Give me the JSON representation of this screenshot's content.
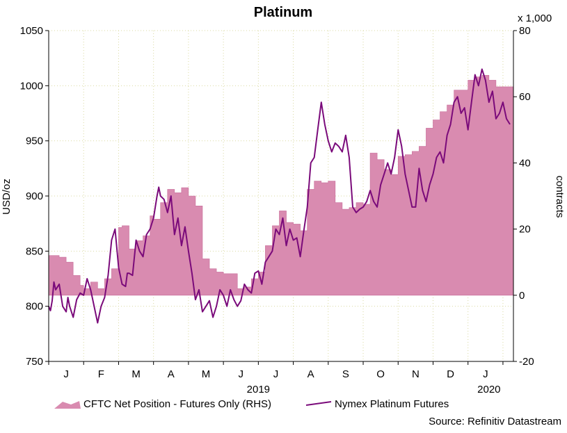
{
  "chart_data": {
    "type": "line",
    "title": "Platinum",
    "left_axis": {
      "label": "USD/oz",
      "range": [
        750,
        1050
      ],
      "ticks": [
        "750",
        "800",
        "850",
        "900",
        "950",
        "1000",
        "1050"
      ],
      "tick_values": [
        750,
        800,
        850,
        900,
        950,
        1000,
        1050
      ]
    },
    "right_axis": {
      "label": "contracts",
      "multiplier_label": "x 1,000",
      "range": [
        -20,
        80
      ],
      "ticks": [
        "-20",
        "0",
        "20",
        "40",
        "60",
        "80"
      ],
      "tick_values": [
        -20,
        0,
        20,
        40,
        60,
        80
      ]
    },
    "x_axis": {
      "range": [
        0,
        13.3
      ],
      "month_labels": [
        "J",
        "F",
        "M",
        "A",
        "M",
        "J",
        "J",
        "A",
        "S",
        "O",
        "N",
        "D",
        "J"
      ],
      "month_positions": [
        0.5,
        1.5,
        2.5,
        3.5,
        4.5,
        5.5,
        6.5,
        7.5,
        8.5,
        9.5,
        10.5,
        11.5,
        12.5
      ],
      "year_labels": [
        "2019",
        "2020"
      ],
      "year_positions": [
        6.0,
        12.6
      ]
    },
    "series": [
      {
        "name": "CFTC Net Position - Futures Only (RHS)",
        "type": "area-step",
        "axis": "right",
        "color": "#d98bb0",
        "x": [
          0,
          0.3,
          0.5,
          0.7,
          0.9,
          1.0,
          1.2,
          1.4,
          1.6,
          1.8,
          2.0,
          2.1,
          2.3,
          2.5,
          2.7,
          2.9,
          3.0,
          3.2,
          3.4,
          3.6,
          3.8,
          4.0,
          4.2,
          4.4,
          4.6,
          4.8,
          5.0,
          5.2,
          5.4,
          5.6,
          5.8,
          6.0,
          6.2,
          6.4,
          6.6,
          6.8,
          7.0,
          7.2,
          7.4,
          7.6,
          7.8,
          8.0,
          8.2,
          8.4,
          8.6,
          8.8,
          9.0,
          9.2,
          9.4,
          9.6,
          9.8,
          10.0,
          10.2,
          10.4,
          10.6,
          10.8,
          11.0,
          11.2,
          11.4,
          11.6,
          11.8,
          12.0,
          12.2,
          12.4,
          12.6,
          12.8,
          13.0,
          13.2
        ],
        "values": [
          12,
          11.5,
          10,
          6,
          3,
          2,
          4,
          2,
          5,
          8,
          20.5,
          21,
          14,
          16.5,
          18,
          24,
          23,
          28,
          32,
          31,
          32.5,
          30,
          27,
          11,
          8,
          7,
          6.5,
          6.5,
          2,
          2.5,
          5,
          7,
          15,
          21,
          25.5,
          22,
          21.5,
          19.5,
          32,
          34.5,
          34,
          34.5,
          28,
          26,
          26.5,
          28,
          27.5,
          43,
          41,
          38,
          36.5,
          42,
          42.5,
          43.5,
          45,
          50.5,
          53,
          55.5,
          57.5,
          62,
          62,
          65,
          66,
          66.5,
          65,
          63,
          63,
          63
        ]
      },
      {
        "name": "Nymex Platinum Futures",
        "type": "line",
        "axis": "left",
        "color": "#7a0a7a",
        "x": [
          0,
          0.05,
          0.1,
          0.15,
          0.2,
          0.3,
          0.4,
          0.5,
          0.55,
          0.6,
          0.7,
          0.8,
          0.9,
          1.0,
          1.1,
          1.2,
          1.3,
          1.4,
          1.5,
          1.6,
          1.7,
          1.8,
          1.9,
          2.0,
          2.1,
          2.2,
          2.25,
          2.3,
          2.4,
          2.5,
          2.6,
          2.7,
          2.8,
          2.9,
          3.0,
          3.1,
          3.15,
          3.2,
          3.3,
          3.4,
          3.5,
          3.6,
          3.7,
          3.8,
          3.9,
          4.0,
          4.1,
          4.2,
          4.3,
          4.4,
          4.5,
          4.6,
          4.7,
          4.8,
          4.9,
          5.0,
          5.1,
          5.2,
          5.3,
          5.4,
          5.5,
          5.6,
          5.7,
          5.8,
          5.9,
          6.0,
          6.1,
          6.2,
          6.3,
          6.4,
          6.5,
          6.6,
          6.7,
          6.8,
          6.9,
          7.0,
          7.1,
          7.2,
          7.3,
          7.4,
          7.5,
          7.6,
          7.7,
          7.8,
          7.9,
          8.0,
          8.05,
          8.1,
          8.2,
          8.3,
          8.4,
          8.5,
          8.6,
          8.7,
          8.8,
          8.9,
          9.0,
          9.1,
          9.2,
          9.3,
          9.4,
          9.5,
          9.6,
          9.7,
          9.8,
          9.9,
          10.0,
          10.1,
          10.2,
          10.3,
          10.4,
          10.5,
          10.6,
          10.7,
          10.8,
          10.9,
          11.0,
          11.1,
          11.2,
          11.3,
          11.4,
          11.5,
          11.6,
          11.7,
          11.8,
          11.9,
          12.0,
          12.1,
          12.2,
          12.3,
          12.4,
          12.5,
          12.6,
          12.7,
          12.8,
          12.9,
          13.0,
          13.1,
          13.2
        ],
        "values": [
          800,
          796,
          805,
          822,
          815,
          820,
          800,
          795,
          808,
          800,
          790,
          806,
          812,
          810,
          825,
          815,
          800,
          785,
          800,
          808,
          828,
          860,
          870,
          835,
          820,
          818,
          830,
          830,
          828,
          860,
          850,
          845,
          865,
          870,
          880,
          900,
          908,
          900,
          897,
          885,
          900,
          865,
          880,
          855,
          872,
          850,
          830,
          806,
          815,
          795,
          800,
          805,
          790,
          800,
          815,
          810,
          800,
          815,
          806,
          800,
          805,
          820,
          815,
          812,
          830,
          832,
          820,
          840,
          845,
          850,
          870,
          865,
          880,
          855,
          870,
          860,
          862,
          845,
          868,
          890,
          930,
          935,
          960,
          985,
          965,
          950,
          945,
          940,
          948,
          945,
          940,
          955,
          935,
          890,
          885,
          888,
          890,
          895,
          905,
          895,
          890,
          910,
          920,
          930,
          920,
          935,
          960,
          945,
          920,
          905,
          890,
          890,
          925,
          905,
          895,
          910,
          920,
          935,
          940,
          930,
          955,
          965,
          985,
          990,
          975,
          980,
          960,
          985,
          1010,
          1000,
          1015,
          1005,
          985,
          995,
          970,
          975,
          985,
          970,
          965
        ]
      }
    ],
    "legend": [
      {
        "label": "CFTC Net Position - Futures Only (RHS)",
        "swatch": "area"
      },
      {
        "label": "Nymex Platinum Futures",
        "swatch": "line"
      }
    ],
    "source": "Source: Refinitiv Datastream",
    "grid": true
  }
}
